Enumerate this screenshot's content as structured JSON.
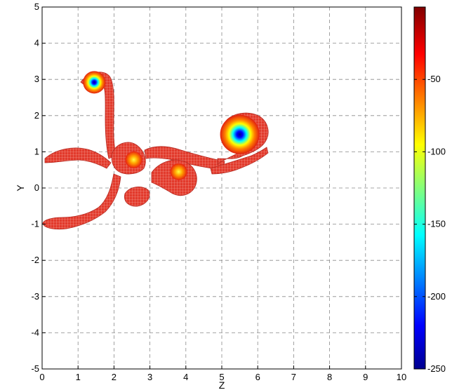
{
  "chart_data": {
    "type": "heatmap",
    "title": "",
    "xlabel": "Z",
    "ylabel": "Y",
    "xlim": [
      0,
      10
    ],
    "ylim": [
      -5,
      5
    ],
    "x_ticks": [
      "0",
      "1",
      "2",
      "3",
      "4",
      "5",
      "6",
      "7",
      "8",
      "9",
      "10"
    ],
    "y_ticks": [
      "5",
      "4",
      "3",
      "2",
      "1",
      "0",
      "-1",
      "-2",
      "-3",
      "-4",
      "-5"
    ],
    "grid": true,
    "colorbar": {
      "range": [
        -250,
        0
      ],
      "ticks": [
        "-50",
        "-100",
        "-150",
        "-200",
        "-250"
      ],
      "tick_values": [
        -50,
        -100,
        -150,
        -200,
        -250
      ],
      "colormap": "jet",
      "colors": [
        "#00008f",
        "#0000ff",
        "#00ffff",
        "#ffff00",
        "#ff0000",
        "#800000"
      ]
    },
    "vortex_cores": [
      {
        "z": 1.45,
        "y": 2.92,
        "min_value": -250
      },
      {
        "z": 5.5,
        "y": 1.48,
        "min_value": -250
      },
      {
        "z": 2.55,
        "y": 0.78,
        "min_value": -40
      },
      {
        "z": 3.8,
        "y": 0.45,
        "min_value": -60
      }
    ]
  }
}
